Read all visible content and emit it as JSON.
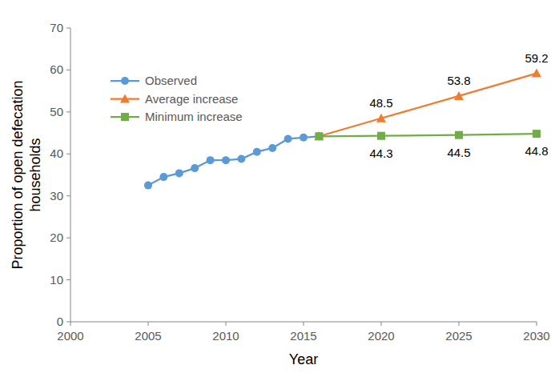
{
  "chart_data": {
    "type": "line",
    "x_label": "Year",
    "y_label": "Proportion of open defecation households",
    "xlim": [
      2000,
      2030
    ],
    "xticks": [
      2000,
      2005,
      2010,
      2015,
      2020,
      2025,
      2030
    ],
    "ylim": [
      0,
      70
    ],
    "yticks": [
      0,
      10,
      20,
      30,
      40,
      50,
      60,
      70
    ],
    "grid": false,
    "legend": "upper left",
    "series": [
      {
        "name": "Observed",
        "color": "#5b9bd5",
        "marker": "circle",
        "line_style": "solid",
        "x": [
          2005,
          2006,
          2007,
          2008,
          2009,
          2010,
          2011,
          2012,
          2013,
          2014,
          2015,
          2016
        ],
        "values": [
          32.5,
          34.5,
          35.4,
          36.6,
          38.5,
          38.5,
          38.8,
          40.5,
          41.4,
          43.6,
          43.9,
          44.2
        ]
      },
      {
        "name": "Average increase",
        "color": "#ed7d31",
        "marker": "triangle",
        "line_style": "solid",
        "data_labels": true,
        "x": [
          2016,
          2020,
          2025,
          2030
        ],
        "values": [
          44.2,
          48.5,
          53.8,
          59.2
        ],
        "value_labels": [
          null,
          "48.5",
          "53.8",
          "59.2"
        ]
      },
      {
        "name": "Minimum increase",
        "color": "#70ad47",
        "marker": "square",
        "line_style": "solid",
        "data_labels": true,
        "x": [
          2016,
          2020,
          2025,
          2030
        ],
        "values": [
          44.2,
          44.3,
          44.5,
          44.8
        ],
        "value_labels": [
          null,
          "44.3",
          "44.5",
          "44.8"
        ]
      }
    ]
  }
}
